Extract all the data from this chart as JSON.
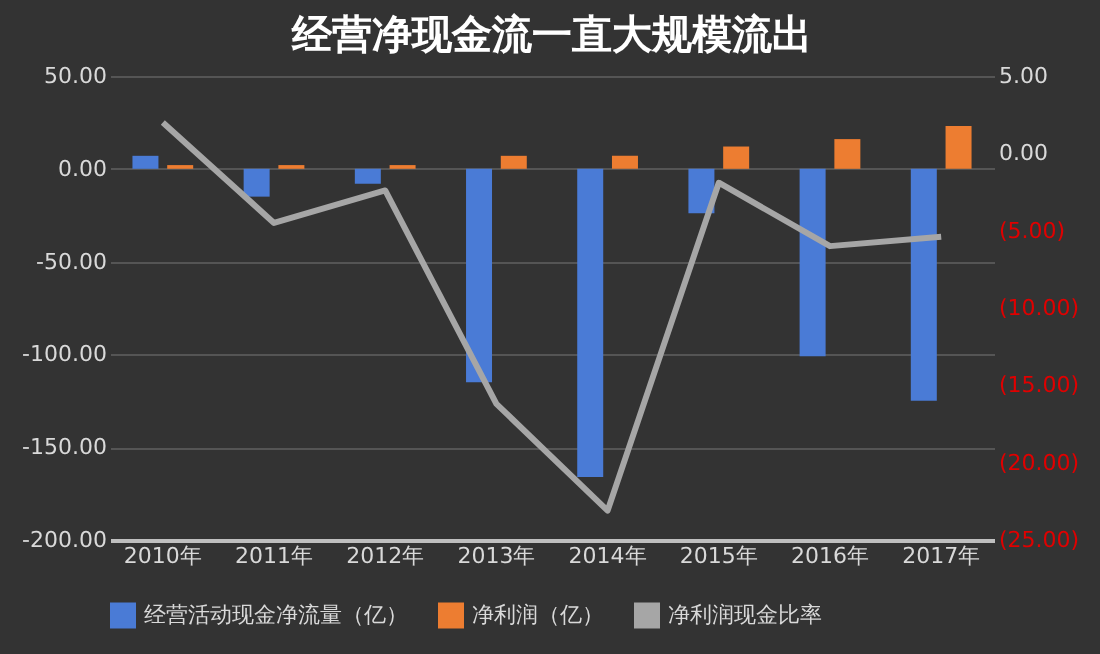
{
  "chart_data": {
    "type": "bar",
    "title": "经营净现金流一直大规模流出",
    "categories": [
      "2010年",
      "2011年",
      "2012年",
      "2013年",
      "2014年",
      "2015年",
      "2016年",
      "2017年"
    ],
    "series": [
      {
        "name": "经营活动现金净流量（亿）",
        "color": "#4a7bd6",
        "values": [
          7,
          -15,
          -8,
          -115,
          -166,
          -24,
          -101,
          -125
        ]
      },
      {
        "name": "净利润（亿）",
        "color": "#ed7d31",
        "values": [
          2,
          2,
          2,
          7,
          7,
          12,
          16,
          23
        ]
      },
      {
        "name": "净利润现金比率",
        "color": "#a6a6a6",
        "type": "line",
        "axis": "y2",
        "values": [
          2.0,
          -4.5,
          -2.4,
          -16.2,
          -23.1,
          -1.9,
          -6.0,
          -5.4
        ]
      }
    ],
    "ylim": [
      -200,
      50
    ],
    "yticks": [
      {
        "value": 50,
        "label": "50.00"
      },
      {
        "value": 0,
        "label": "0.00"
      },
      {
        "value": -50,
        "label": "-50.00"
      },
      {
        "value": -100,
        "label": "-100.00"
      },
      {
        "value": -150,
        "label": "-150.00"
      },
      {
        "value": -200,
        "label": "-200.00"
      }
    ],
    "y2lim": [
      -25,
      5
    ],
    "y2ticks": [
      {
        "value": 5,
        "label": "5.00"
      },
      {
        "value": 0,
        "label": "0.00"
      },
      {
        "value": -5,
        "label": "(5.00)"
      },
      {
        "value": -10,
        "label": "(10.00)"
      },
      {
        "value": -15,
        "label": "(15.00)"
      },
      {
        "value": -20,
        "label": "(20.00)"
      },
      {
        "value": -25,
        "label": "(25.00)"
      }
    ],
    "grid": "y",
    "legend": "bottom"
  }
}
